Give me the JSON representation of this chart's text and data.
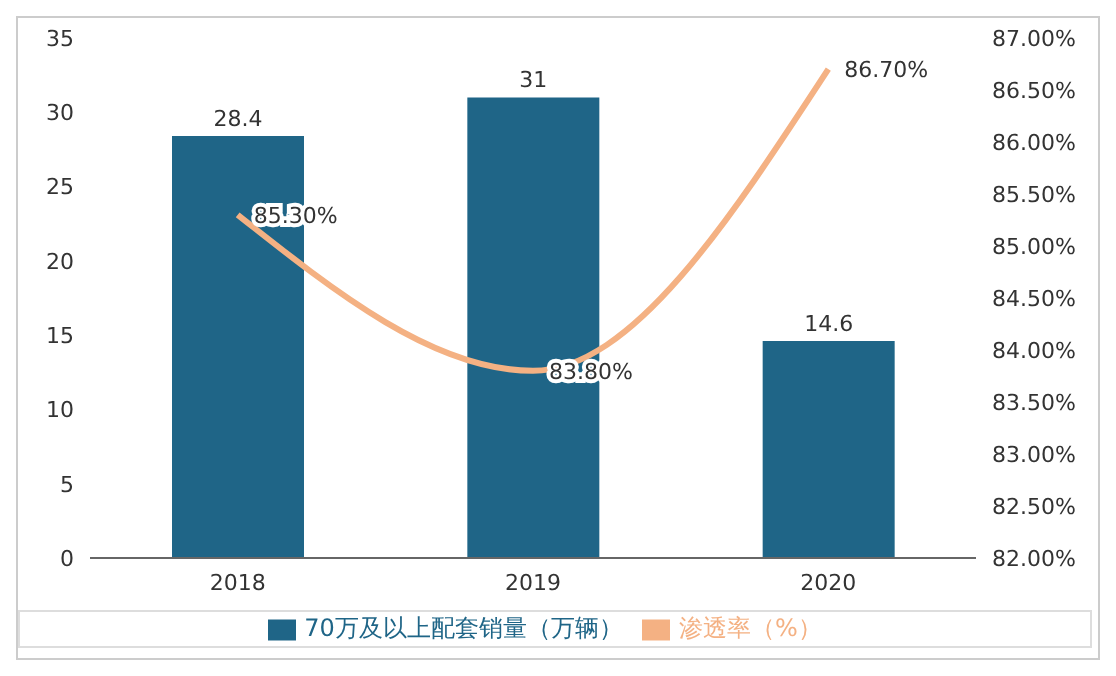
{
  "chart_data": {
    "type": "bar",
    "categories": [
      "2018",
      "2019",
      "2020"
    ],
    "series": [
      {
        "name": "70万及以上配套销量（万辆）",
        "color": "#1f6587",
        "values": [
          28.4,
          31,
          14.6
        ]
      },
      {
        "name": "渗透率（%）",
        "type": "line",
        "axis": "y2",
        "color": "#f4b183",
        "values": [
          85.3,
          83.8,
          86.7
        ],
        "value_labels": [
          "85.30%",
          "83.80%",
          "86.70%"
        ]
      }
    ],
    "data_labels": true,
    "ylim": [
      0,
      35
    ],
    "yticks": [
      0,
      5,
      10,
      15,
      20,
      25,
      30,
      35
    ],
    "y2lim": [
      82,
      87
    ],
    "y2ticks": [
      {
        "value": 82,
        "label": "82.00%"
      },
      {
        "value": 82.5,
        "label": "82.50%"
      },
      {
        "value": 83,
        "label": "83.00%"
      },
      {
        "value": 83.5,
        "label": "83.50%"
      },
      {
        "value": 84,
        "label": "84.00%"
      },
      {
        "value": 84.5,
        "label": "84.50%"
      },
      {
        "value": 85,
        "label": "85.00%"
      },
      {
        "value": 85.5,
        "label": "85.50%"
      },
      {
        "value": 86,
        "label": "86.00%"
      },
      {
        "value": 86.5,
        "label": "86.50%"
      },
      {
        "value": 87,
        "label": "87.00%"
      }
    ],
    "legend": "bottom",
    "marker": "none"
  }
}
